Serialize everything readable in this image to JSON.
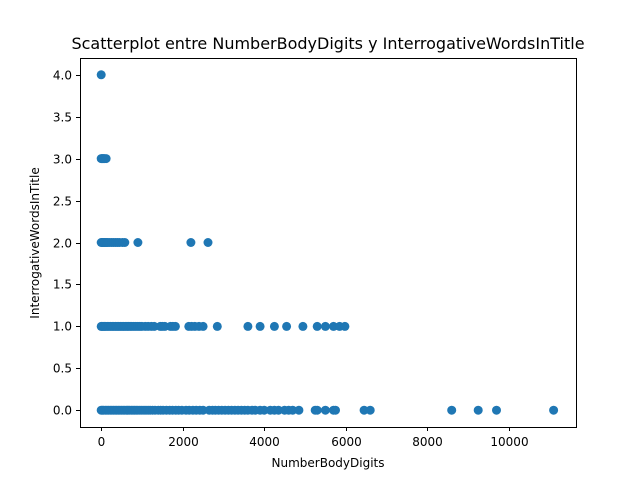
{
  "chart_data": {
    "type": "scatter",
    "title": "Scatterplot entre NumberBodyDigits y InterrogativeWordsInTitle",
    "xlabel": "NumberBodyDigits",
    "ylabel": "InterrogativeWordsInTitle",
    "xlim": [
      -520,
      11650
    ],
    "ylim": [
      -0.2,
      4.2
    ],
    "x_ticks": [
      0,
      2000,
      4000,
      6000,
      8000,
      10000
    ],
    "y_ticks": [
      0.0,
      0.5,
      1.0,
      1.5,
      2.0,
      2.5,
      3.0,
      3.5,
      4.0
    ],
    "x_tick_labels": [
      "0",
      "2000",
      "4000",
      "6000",
      "8000",
      "10000"
    ],
    "y_tick_labels": [
      "0.0",
      "0.5",
      "1.0",
      "1.5",
      "2.0",
      "2.5",
      "3.0",
      "3.5",
      "4.0"
    ],
    "grid": false,
    "legend": "none",
    "marker_color": "#1f77b4",
    "series": [
      {
        "points": [
          [
            0,
            4
          ],
          [
            0,
            3
          ],
          [
            20,
            3
          ],
          [
            40,
            3
          ],
          [
            60,
            3
          ],
          [
            80,
            3
          ],
          [
            120,
            3
          ],
          [
            0,
            2
          ],
          [
            20,
            2
          ],
          [
            40,
            2
          ],
          [
            60,
            2
          ],
          [
            80,
            2
          ],
          [
            100,
            2
          ],
          [
            130,
            2
          ],
          [
            160,
            2
          ],
          [
            200,
            2
          ],
          [
            250,
            2
          ],
          [
            300,
            2
          ],
          [
            350,
            2
          ],
          [
            400,
            2
          ],
          [
            450,
            2
          ],
          [
            520,
            2
          ],
          [
            580,
            2
          ],
          [
            900,
            2
          ],
          [
            2200,
            2
          ],
          [
            2620,
            2
          ],
          [
            0,
            1
          ],
          [
            20,
            1
          ],
          [
            50,
            1
          ],
          [
            80,
            1
          ],
          [
            110,
            1
          ],
          [
            150,
            1
          ],
          [
            190,
            1
          ],
          [
            230,
            1
          ],
          [
            270,
            1
          ],
          [
            310,
            1
          ],
          [
            350,
            1
          ],
          [
            390,
            1
          ],
          [
            430,
            1
          ],
          [
            470,
            1
          ],
          [
            510,
            1
          ],
          [
            550,
            1
          ],
          [
            590,
            1
          ],
          [
            630,
            1
          ],
          [
            670,
            1
          ],
          [
            710,
            1
          ],
          [
            750,
            1
          ],
          [
            800,
            1
          ],
          [
            850,
            1
          ],
          [
            900,
            1
          ],
          [
            950,
            1
          ],
          [
            1000,
            1
          ],
          [
            1080,
            1
          ],
          [
            1150,
            1
          ],
          [
            1230,
            1
          ],
          [
            1300,
            1
          ],
          [
            1450,
            1
          ],
          [
            1500,
            1
          ],
          [
            1560,
            1
          ],
          [
            1700,
            1
          ],
          [
            1760,
            1
          ],
          [
            1820,
            1
          ],
          [
            2150,
            1
          ],
          [
            2220,
            1
          ],
          [
            2300,
            1
          ],
          [
            2400,
            1
          ],
          [
            2500,
            1
          ],
          [
            2850,
            1
          ],
          [
            3600,
            1
          ],
          [
            3900,
            1
          ],
          [
            4250,
            1
          ],
          [
            4550,
            1
          ],
          [
            4950,
            1
          ],
          [
            5300,
            1
          ],
          [
            5500,
            1
          ],
          [
            5700,
            1
          ],
          [
            5850,
            1
          ],
          [
            5980,
            1
          ],
          [
            0,
            0
          ],
          [
            30,
            0
          ],
          [
            60,
            0
          ],
          [
            100,
            0
          ],
          [
            140,
            0
          ],
          [
            180,
            0
          ],
          [
            220,
            0
          ],
          [
            260,
            0
          ],
          [
            300,
            0
          ],
          [
            340,
            0
          ],
          [
            380,
            0
          ],
          [
            420,
            0
          ],
          [
            460,
            0
          ],
          [
            500,
            0
          ],
          [
            540,
            0
          ],
          [
            580,
            0
          ],
          [
            620,
            0
          ],
          [
            660,
            0
          ],
          [
            700,
            0
          ],
          [
            740,
            0
          ],
          [
            780,
            0
          ],
          [
            820,
            0
          ],
          [
            860,
            0
          ],
          [
            900,
            0
          ],
          [
            950,
            0
          ],
          [
            1000,
            0
          ],
          [
            1050,
            0
          ],
          [
            1100,
            0
          ],
          [
            1150,
            0
          ],
          [
            1200,
            0
          ],
          [
            1260,
            0
          ],
          [
            1320,
            0
          ],
          [
            1400,
            0
          ],
          [
            1460,
            0
          ],
          [
            1520,
            0
          ],
          [
            1600,
            0
          ],
          [
            1680,
            0
          ],
          [
            1750,
            0
          ],
          [
            1830,
            0
          ],
          [
            1900,
            0
          ],
          [
            1980,
            0
          ],
          [
            2080,
            0
          ],
          [
            2160,
            0
          ],
          [
            2250,
            0
          ],
          [
            2330,
            0
          ],
          [
            2420,
            0
          ],
          [
            2500,
            0
          ],
          [
            2650,
            0
          ],
          [
            2730,
            0
          ],
          [
            2800,
            0
          ],
          [
            2880,
            0
          ],
          [
            2960,
            0
          ],
          [
            3040,
            0
          ],
          [
            3120,
            0
          ],
          [
            3200,
            0
          ],
          [
            3280,
            0
          ],
          [
            3360,
            0
          ],
          [
            3440,
            0
          ],
          [
            3520,
            0
          ],
          [
            3600,
            0
          ],
          [
            3700,
            0
          ],
          [
            3780,
            0
          ],
          [
            3900,
            0
          ],
          [
            4000,
            0
          ],
          [
            4150,
            0
          ],
          [
            4250,
            0
          ],
          [
            4350,
            0
          ],
          [
            4500,
            0
          ],
          [
            4600,
            0
          ],
          [
            4700,
            0
          ],
          [
            4850,
            0
          ],
          [
            5250,
            0
          ],
          [
            5300,
            0
          ],
          [
            5500,
            0
          ],
          [
            5700,
            0
          ],
          [
            5750,
            0
          ],
          [
            6450,
            0
          ],
          [
            6600,
            0
          ],
          [
            8600,
            0
          ],
          [
            9250,
            0
          ],
          [
            9700,
            0
          ],
          [
            11100,
            0
          ]
        ]
      }
    ]
  }
}
